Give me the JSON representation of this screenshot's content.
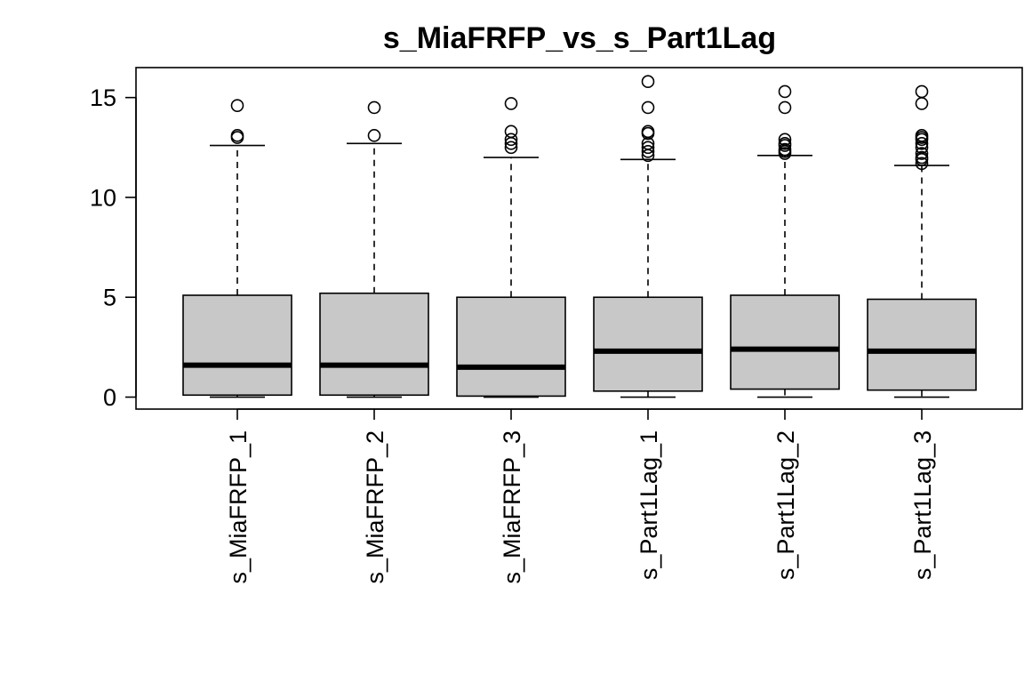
{
  "chart_data": {
    "type": "boxplot",
    "title": "s_MiaFRFP_vs_s_Part1Lag",
    "xlabel": "",
    "ylabel": "",
    "ylim": [
      -0.6,
      16.5
    ],
    "y_ticks": [
      0,
      5,
      10,
      15
    ],
    "y_tick_labels": [
      "0",
      "5",
      "10",
      "15"
    ],
    "grid": false,
    "legend": "none",
    "box_fill": "#c8c8c8",
    "line_color": "#000000",
    "categories": [
      "s_MiaFRFP_1",
      "s_MiaFRFP_2",
      "s_MiaFRFP_3",
      "s_Part1Lag_1",
      "s_Part1Lag_2",
      "s_Part1Lag_3"
    ],
    "boxes": [
      {
        "min": 0.0,
        "q1": 0.1,
        "median": 1.6,
        "q3": 5.1,
        "max": 12.6,
        "outliers": [
          13.0,
          13.1,
          14.6
        ]
      },
      {
        "min": 0.0,
        "q1": 0.1,
        "median": 1.6,
        "q3": 5.2,
        "max": 12.7,
        "outliers": [
          13.1,
          14.5
        ]
      },
      {
        "min": 0.0,
        "q1": 0.05,
        "median": 1.5,
        "q3": 5.0,
        "max": 12.0,
        "outliers": [
          12.5,
          12.7,
          12.9,
          13.3,
          14.7
        ]
      },
      {
        "min": 0.0,
        "q1": 0.3,
        "median": 2.3,
        "q3": 5.0,
        "max": 11.9,
        "outliers": [
          12.1,
          12.3,
          12.5,
          12.7,
          13.2,
          13.3,
          14.5,
          15.8
        ]
      },
      {
        "min": 0.0,
        "q1": 0.4,
        "median": 2.4,
        "q3": 5.1,
        "max": 12.1,
        "outliers": [
          12.2,
          12.3,
          12.4,
          12.6,
          12.7,
          12.9,
          14.5,
          15.3
        ]
      },
      {
        "min": 0.0,
        "q1": 0.35,
        "median": 2.3,
        "q3": 4.9,
        "max": 11.6,
        "outliers": [
          11.7,
          11.9,
          12.0,
          12.2,
          12.5,
          12.7,
          12.9,
          13.0,
          13.1,
          14.7,
          15.3
        ]
      }
    ]
  }
}
